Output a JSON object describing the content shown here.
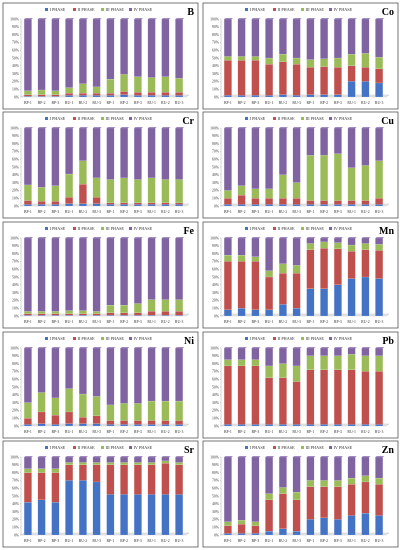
{
  "legend": [
    "I PHASE",
    "II PHASE",
    "III PHASE",
    "IV PHASE"
  ],
  "colors": [
    "#4472C4",
    "#C0504D",
    "#9BBB59",
    "#8064A2"
  ],
  "categories": [
    "BP-1",
    "BP-2",
    "BP-3",
    "BU-1",
    "BU-2",
    "BU-3",
    "RP-1",
    "RP-2",
    "RP-3",
    "RU-1",
    "RU-2",
    "RU-3"
  ],
  "y_ticks": [
    "0%",
    "10%",
    "20%",
    "30%",
    "40%",
    "50%",
    "60%",
    "70%",
    "80%",
    "90%",
    "100%"
  ],
  "chart_data": [
    {
      "type": "bar",
      "stacked": true,
      "label": "B",
      "ylim": [
        0,
        100
      ],
      "series": [
        {
          "name": "I PHASE",
          "values": [
            1,
            1,
            1,
            2,
            2,
            2,
            2,
            3,
            2,
            2,
            2,
            2
          ]
        },
        {
          "name": "II PHASE",
          "values": [
            2,
            2,
            2,
            3,
            3,
            3,
            3,
            4,
            4,
            4,
            4,
            4
          ]
        },
        {
          "name": "III PHASE",
          "values": [
            5,
            6,
            5,
            7,
            12,
            8,
            18,
            22,
            20,
            19,
            20,
            18
          ]
        },
        {
          "name": "IV PHASE",
          "values": [
            92,
            91,
            92,
            88,
            83,
            87,
            77,
            71,
            74,
            75,
            74,
            76
          ]
        }
      ]
    },
    {
      "type": "bar",
      "stacked": true,
      "label": "Co",
      "ylim": [
        0,
        100
      ],
      "series": [
        {
          "name": "I PHASE",
          "values": [
            2,
            2,
            2,
            2,
            3,
            2,
            3,
            3,
            3,
            20,
            20,
            18
          ]
        },
        {
          "name": "II PHASE",
          "values": [
            45,
            45,
            45,
            40,
            42,
            40,
            35,
            36,
            35,
            20,
            18,
            18
          ]
        },
        {
          "name": "III PHASE",
          "values": [
            5,
            5,
            5,
            8,
            10,
            8,
            10,
            10,
            12,
            15,
            18,
            15
          ]
        },
        {
          "name": "IV PHASE",
          "values": [
            48,
            48,
            48,
            50,
            45,
            50,
            52,
            51,
            50,
            45,
            44,
            49
          ]
        }
      ]
    },
    {
      "type": "bar",
      "stacked": true,
      "label": "Cr",
      "ylim": [
        0,
        100
      ],
      "series": [
        {
          "name": "I PHASE",
          "values": [
            2,
            2,
            2,
            3,
            3,
            3,
            2,
            2,
            2,
            2,
            2,
            2
          ]
        },
        {
          "name": "II PHASE",
          "values": [
            5,
            4,
            4,
            8,
            25,
            8,
            2,
            2,
            2,
            2,
            2,
            2
          ]
        },
        {
          "name": "III PHASE",
          "values": [
            20,
            18,
            20,
            30,
            30,
            25,
            30,
            32,
            30,
            32,
            30,
            30
          ]
        },
        {
          "name": "IV PHASE",
          "values": [
            73,
            76,
            74,
            59,
            42,
            64,
            66,
            64,
            66,
            64,
            66,
            66
          ]
        }
      ]
    },
    {
      "type": "bar",
      "stacked": true,
      "label": "Cu",
      "ylim": [
        0,
        100
      ],
      "series": [
        {
          "name": "I PHASE",
          "values": [
            2,
            2,
            2,
            2,
            2,
            2,
            2,
            2,
            2,
            2,
            2,
            2
          ]
        },
        {
          "name": "II PHASE",
          "values": [
            8,
            12,
            8,
            8,
            8,
            8,
            5,
            5,
            5,
            5,
            5,
            8
          ]
        },
        {
          "name": "III PHASE",
          "values": [
            10,
            12,
            12,
            12,
            30,
            20,
            58,
            58,
            60,
            42,
            45,
            48
          ]
        },
        {
          "name": "IV PHASE",
          "values": [
            80,
            74,
            78,
            78,
            60,
            70,
            35,
            35,
            33,
            51,
            48,
            42
          ]
        }
      ]
    },
    {
      "type": "bar",
      "stacked": true,
      "label": "Fe",
      "ylim": [
        0,
        100
      ],
      "series": [
        {
          "name": "I PHASE",
          "values": [
            1,
            1,
            1,
            1,
            1,
            1,
            1,
            1,
            1,
            1,
            1,
            1
          ]
        },
        {
          "name": "II PHASE",
          "values": [
            2,
            2,
            2,
            2,
            2,
            2,
            3,
            3,
            3,
            5,
            5,
            5
          ]
        },
        {
          "name": "III PHASE",
          "values": [
            3,
            3,
            3,
            4,
            4,
            3,
            10,
            10,
            12,
            15,
            15,
            15
          ]
        },
        {
          "name": "IV PHASE",
          "values": [
            94,
            94,
            94,
            93,
            93,
            94,
            86,
            86,
            84,
            79,
            79,
            79
          ]
        }
      ]
    },
    {
      "type": "bar",
      "stacked": true,
      "label": "Mn",
      "ylim": [
        0,
        100
      ],
      "series": [
        {
          "name": "I PHASE",
          "values": [
            8,
            10,
            8,
            8,
            15,
            10,
            35,
            35,
            40,
            48,
            50,
            48
          ]
        },
        {
          "name": "II PHASE",
          "values": [
            62,
            60,
            62,
            42,
            40,
            45,
            50,
            52,
            46,
            35,
            35,
            36
          ]
        },
        {
          "name": "III PHASE",
          "values": [
            8,
            8,
            6,
            8,
            12,
            10,
            8,
            8,
            8,
            8,
            8,
            8
          ]
        },
        {
          "name": "IV PHASE",
          "values": [
            22,
            22,
            24,
            42,
            33,
            35,
            7,
            5,
            6,
            9,
            7,
            8
          ]
        }
      ]
    },
    {
      "type": "bar",
      "stacked": true,
      "label": "Ni",
      "ylim": [
        0,
        100
      ],
      "series": [
        {
          "name": "I PHASE",
          "values": [
            2,
            3,
            2,
            3,
            3,
            3,
            2,
            2,
            2,
            2,
            2,
            2
          ]
        },
        {
          "name": "II PHASE",
          "values": [
            8,
            15,
            12,
            15,
            8,
            10,
            5,
            5,
            5,
            5,
            5,
            5
          ]
        },
        {
          "name": "III PHASE",
          "values": [
            20,
            25,
            22,
            30,
            30,
            25,
            20,
            22,
            22,
            25,
            25,
            25
          ]
        },
        {
          "name": "IV PHASE",
          "values": [
            70,
            57,
            64,
            52,
            59,
            62,
            73,
            71,
            71,
            68,
            68,
            68
          ]
        }
      ]
    },
    {
      "type": "bar",
      "stacked": true,
      "label": "Pb",
      "ylim": [
        0,
        100
      ],
      "series": [
        {
          "name": "I PHASE",
          "values": [
            2,
            2,
            2,
            2,
            2,
            2,
            2,
            2,
            2,
            2,
            2,
            2
          ]
        },
        {
          "name": "II PHASE",
          "values": [
            75,
            75,
            75,
            60,
            60,
            55,
            70,
            70,
            70,
            70,
            68,
            68
          ]
        },
        {
          "name": "III PHASE",
          "values": [
            8,
            8,
            8,
            15,
            18,
            20,
            18,
            18,
            18,
            20,
            20,
            20
          ]
        },
        {
          "name": "IV PHASE",
          "values": [
            15,
            15,
            15,
            23,
            20,
            23,
            10,
            10,
            10,
            8,
            10,
            10
          ]
        }
      ]
    },
    {
      "type": "bar",
      "stacked": true,
      "label": "Sr",
      "ylim": [
        0,
        100
      ],
      "series": [
        {
          "name": "I PHASE",
          "values": [
            42,
            45,
            42,
            70,
            70,
            68,
            52,
            52,
            52,
            52,
            52,
            52
          ]
        },
        {
          "name": "II PHASE",
          "values": [
            38,
            35,
            38,
            20,
            20,
            22,
            38,
            38,
            38,
            38,
            40,
            38
          ]
        },
        {
          "name": "III PHASE",
          "values": [
            5,
            5,
            5,
            3,
            3,
            3,
            3,
            3,
            3,
            3,
            3,
            3
          ]
        },
        {
          "name": "IV PHASE",
          "values": [
            15,
            15,
            15,
            7,
            7,
            7,
            7,
            7,
            7,
            7,
            5,
            7
          ]
        }
      ]
    },
    {
      "type": "bar",
      "stacked": true,
      "label": "Zn",
      "ylim": [
        0,
        100
      ],
      "series": [
        {
          "name": "I PHASE",
          "values": [
            2,
            2,
            2,
            5,
            8,
            5,
            20,
            22,
            20,
            25,
            28,
            25
          ]
        },
        {
          "name": "II PHASE",
          "values": [
            10,
            12,
            10,
            40,
            45,
            40,
            42,
            40,
            42,
            40,
            40,
            40
          ]
        },
        {
          "name": "III PHASE",
          "values": [
            5,
            5,
            5,
            8,
            8,
            10,
            8,
            8,
            8,
            8,
            8,
            8
          ]
        },
        {
          "name": "IV PHASE",
          "values": [
            83,
            81,
            83,
            47,
            39,
            45,
            30,
            30,
            30,
            27,
            24,
            27
          ]
        }
      ]
    }
  ]
}
